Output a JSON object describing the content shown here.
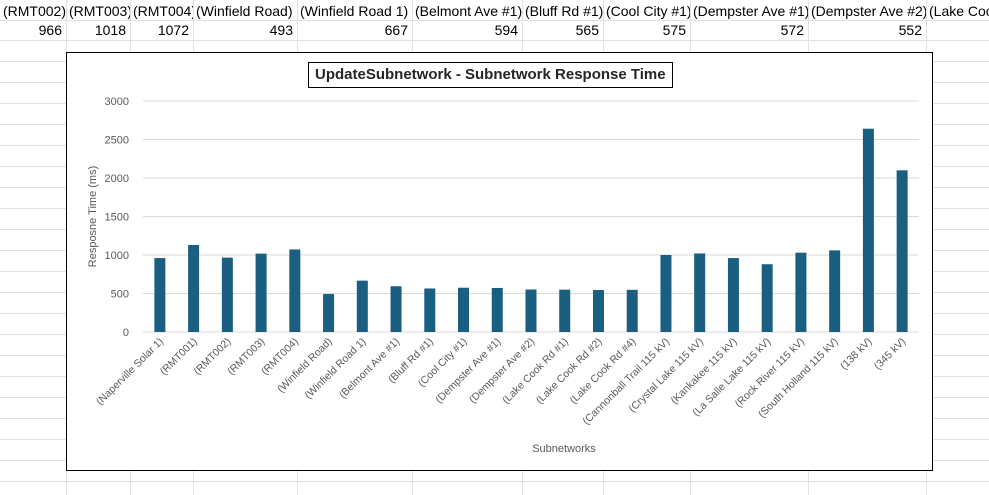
{
  "spreadsheet": {
    "headers": [
      "(RMT002)",
      "(RMT003)",
      "(RMT004)",
      "(Winfield Road)",
      "(Winfield Road 1)",
      "(Belmont Ave #1)",
      "(Bluff Rd #1)",
      "(Cool City #1)",
      "(Dempster Ave #1)",
      "(Dempster Ave #2)",
      "(Lake Coo"
    ],
    "values": [
      "966",
      "1018",
      "1072",
      "493",
      "667",
      "594",
      "565",
      "575",
      "572",
      "552",
      ""
    ]
  },
  "chart_data": {
    "type": "bar",
    "title": "UpdateSubnetwork - Subnetwork Response Time",
    "xlabel": "Subnetworks",
    "ylabel": "Resposne Time (ms)",
    "ylim": [
      0,
      3000
    ],
    "yticks": [
      "0",
      "500",
      "1000",
      "1500",
      "2000",
      "2500",
      "3000"
    ],
    "grid": true,
    "bar_color": "#1a5e80",
    "categories": [
      "(Naperville Solar 1)",
      "(RMT001)",
      "(RMT002)",
      "(RMT003)",
      "(RMT004)",
      "(Winfield Road)",
      "(Winfield Road 1)",
      "(Belmont Ave #1)",
      "(Bluff Rd #1)",
      "(Cool City #1)",
      "(Dempster Ave #1)",
      "(Dempster Ave #2)",
      "(Lake Cook Rd #1)",
      "(Lake Cook Rd #2)",
      "(Lake Cook Rd #4)",
      "(Cannonball Trail 115 kV)",
      "(Crystal Lake 115 kV)",
      "(Kankakee 115 kV)",
      "(La Salle Lake 115 kV)",
      "(Rock River 115 kV)",
      "(South Holland 115 kV)",
      "(138 kV)",
      "(345 kV)"
    ],
    "values": [
      960,
      1130,
      966,
      1018,
      1072,
      493,
      667,
      594,
      565,
      575,
      572,
      552,
      550,
      545,
      548,
      1000,
      1020,
      960,
      880,
      1030,
      1060,
      2640,
      2100
    ]
  }
}
